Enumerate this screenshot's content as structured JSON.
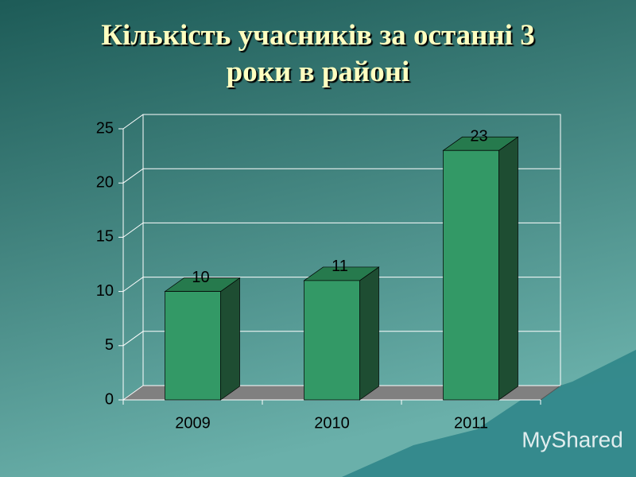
{
  "chart_data": {
    "type": "bar3d",
    "title": "Кількість учасників за останні 3 роки в районі",
    "categories": [
      "2009",
      "2010",
      "2011"
    ],
    "values": [
      10,
      11,
      23
    ],
    "color": "#339966",
    "ylim": [
      0,
      25
    ],
    "yticks": [
      0,
      5,
      10,
      15,
      20,
      25
    ],
    "grid": true
  },
  "watermark": "MyShared"
}
